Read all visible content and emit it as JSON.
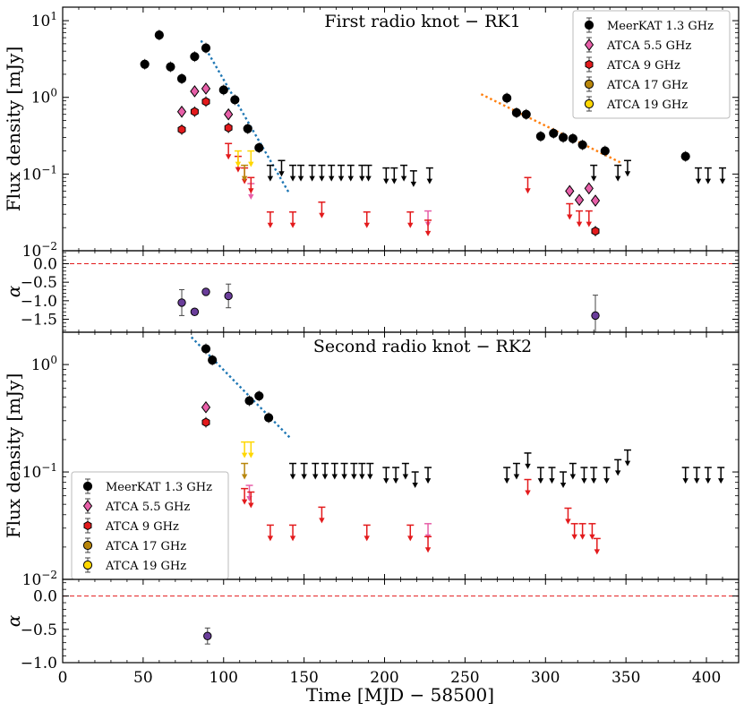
{
  "chart_data": {
    "type": "scatter",
    "x_axis": {
      "label": "Time [MJD − 58500]",
      "range": [
        0,
        420
      ],
      "ticks": [
        0,
        50,
        100,
        150,
        200,
        250,
        300,
        350,
        400
      ]
    },
    "panels": [
      {
        "id": "rk1-flux",
        "title": "First radio knot − RK1",
        "ylabel": "Flux density [mJy]",
        "yscale": "log",
        "ylim": [
          0.01,
          15
        ],
        "ytick_labels": [
          "10−2",
          "10−1",
          "100",
          "101"
        ],
        "legend_position": "top-right",
        "series": [
          {
            "name": "MeerKAT 1.3 GHz",
            "color": "#000000",
            "marker": "circle",
            "points": [
              [
                51,
                2.7
              ],
              [
                60,
                6.5
              ],
              [
                67,
                2.5
              ],
              [
                74,
                1.75
              ],
              [
                82,
                3.4
              ],
              [
                89,
                4.4
              ],
              [
                100,
                1.25
              ],
              [
                107,
                0.93
              ],
              [
                115,
                0.39
              ],
              [
                122,
                0.22
              ],
              [
                276,
                0.98
              ],
              [
                282,
                0.63
              ],
              [
                288,
                0.6
              ],
              [
                297,
                0.31
              ],
              [
                305,
                0.34
              ],
              [
                311,
                0.3
              ],
              [
                317,
                0.29
              ],
              [
                323,
                0.24
              ],
              [
                337,
                0.2
              ],
              [
                387,
                0.17
              ]
            ],
            "upper_limits": [
              [
                129,
                0.13
              ],
              [
                136,
                0.15
              ],
              [
                143,
                0.13
              ],
              [
                148,
                0.13
              ],
              [
                155,
                0.13
              ],
              [
                161,
                0.13
              ],
              [
                167,
                0.13
              ],
              [
                173,
                0.13
              ],
              [
                179,
                0.13
              ],
              [
                186,
                0.13
              ],
              [
                190,
                0.13
              ],
              [
                201,
                0.12
              ],
              [
                206,
                0.12
              ],
              [
                212,
                0.13
              ],
              [
                218,
                0.11
              ],
              [
                228,
                0.12
              ],
              [
                330,
                0.13
              ],
              [
                345,
                0.13
              ],
              [
                351,
                0.15
              ],
              [
                395,
                0.12
              ],
              [
                401,
                0.12
              ],
              [
                410,
                0.12
              ]
            ]
          },
          {
            "name": "ATCA 5.5 GHz",
            "color": "#e75fa8",
            "marker": "diamond",
            "points": [
              [
                74,
                0.65
              ],
              [
                82,
                1.2
              ],
              [
                89,
                1.3
              ],
              [
                103,
                0.6
              ],
              [
                315,
                0.06
              ],
              [
                321,
                0.046
              ],
              [
                327,
                0.065
              ],
              [
                331,
                0.045
              ]
            ],
            "upper_limits": [
              [
                117,
                0.075
              ],
              [
                227,
                0.033
              ]
            ]
          },
          {
            "name": "ATCA 9 GHz",
            "color": "#e31a1c",
            "marker": "hexagon",
            "points": [
              [
                74,
                0.38
              ],
              [
                82,
                0.65
              ],
              [
                89,
                0.88
              ],
              [
                103,
                0.4
              ],
              [
                331,
                0.018
              ]
            ],
            "upper_limits": [
              [
                103,
                0.25
              ],
              [
                109,
                0.17
              ],
              [
                113,
                0.12
              ],
              [
                117,
                0.09
              ],
              [
                129,
                0.032
              ],
              [
                143,
                0.032
              ],
              [
                161,
                0.043
              ],
              [
                189,
                0.032
              ],
              [
                216,
                0.032
              ],
              [
                227,
                0.025
              ],
              [
                289,
                0.09
              ],
              [
                315,
                0.041
              ],
              [
                321,
                0.033
              ],
              [
                327,
                0.033
              ]
            ]
          },
          {
            "name": "ATCA 17 GHz",
            "color": "#b8860b",
            "marker": "circle",
            "points": [],
            "upper_limits": [
              [
                113,
                0.13
              ]
            ]
          },
          {
            "name": "ATCA 19 GHz",
            "color": "#ffd700",
            "marker": "circle",
            "points": [],
            "upper_limits": [
              [
                109,
                0.2
              ],
              [
                117,
                0.2
              ]
            ]
          }
        ],
        "fit_lines": [
          {
            "color": "#1f77b4",
            "from": [
              86,
              5.5
            ],
            "to": [
              141,
              0.055
            ]
          },
          {
            "color": "#ff7f0e",
            "from": [
              260,
              1.1
            ],
            "to": [
              347,
              0.14
            ]
          }
        ]
      },
      {
        "id": "rk1-alpha",
        "ylabel": "α",
        "yscale": "linear",
        "ylim": [
          -1.85,
          0.35
        ],
        "yticks": [
          0.0,
          -0.5,
          -1.0,
          -1.5
        ],
        "ytick_labels": [
          "0.0",
          "−0.5",
          "−1.0",
          "−1.5"
        ],
        "reference_line": 0,
        "points": [
          [
            74,
            -1.05,
            0.35
          ],
          [
            82,
            -1.3,
            0
          ],
          [
            89,
            -0.76,
            0
          ],
          [
            103,
            -0.87,
            0.32
          ],
          [
            331,
            -1.4,
            0.55
          ]
        ],
        "color": "#6a3d9a"
      },
      {
        "id": "rk2-flux",
        "title": "Second radio knot − RK2",
        "ylabel": "Flux density [mJy]",
        "yscale": "log",
        "ylim": [
          0.01,
          2
        ],
        "ytick_labels": [
          "10−2",
          "10−1",
          "100"
        ],
        "legend_position": "bottom-left",
        "series": [
          {
            "name": "MeerKAT 1.3 GHz",
            "color": "#000000",
            "marker": "circle",
            "points": [
              [
                89,
                1.4
              ],
              [
                93,
                1.1
              ],
              [
                116,
                0.46
              ],
              [
                122,
                0.51
              ],
              [
                128,
                0.32
              ]
            ],
            "upper_limits": [
              [
                143,
                0.12
              ],
              [
                150,
                0.12
              ],
              [
                157,
                0.12
              ],
              [
                163,
                0.12
              ],
              [
                169,
                0.12
              ],
              [
                175,
                0.12
              ],
              [
                181,
                0.12
              ],
              [
                186,
                0.12
              ],
              [
                191,
                0.12
              ],
              [
                201,
                0.11
              ],
              [
                207,
                0.11
              ],
              [
                213,
                0.12
              ],
              [
                219,
                0.1
              ],
              [
                227,
                0.11
              ],
              [
                276,
                0.11
              ],
              [
                282,
                0.12
              ],
              [
                289,
                0.15
              ],
              [
                297,
                0.11
              ],
              [
                304,
                0.11
              ],
              [
                311,
                0.1
              ],
              [
                317,
                0.12
              ],
              [
                324,
                0.11
              ],
              [
                330,
                0.11
              ],
              [
                338,
                0.11
              ],
              [
                345,
                0.13
              ],
              [
                351,
                0.16
              ],
              [
                387,
                0.11
              ],
              [
                394,
                0.11
              ],
              [
                401,
                0.11
              ],
              [
                409,
                0.11
              ]
            ]
          },
          {
            "name": "ATCA 5.5 GHz",
            "color": "#e75fa8",
            "marker": "diamond",
            "points": [
              [
                89,
                0.4
              ]
            ],
            "upper_limits": [
              [
                116,
                0.075
              ],
              [
                227,
                0.033
              ]
            ]
          },
          {
            "name": "ATCA 9 GHz",
            "color": "#e31a1c",
            "marker": "hexagon",
            "points": [
              [
                89,
                0.29
              ]
            ],
            "upper_limits": [
              [
                113,
                0.07
              ],
              [
                117,
                0.065
              ],
              [
                129,
                0.032
              ],
              [
                143,
                0.032
              ],
              [
                161,
                0.047
              ],
              [
                189,
                0.032
              ],
              [
                216,
                0.032
              ],
              [
                227,
                0.025
              ],
              [
                289,
                0.085
              ],
              [
                314,
                0.046
              ],
              [
                318,
                0.033
              ],
              [
                323,
                0.033
              ],
              [
                329,
                0.033
              ],
              [
                332,
                0.024
              ]
            ]
          },
          {
            "name": "ATCA 17 GHz",
            "color": "#b8860b",
            "marker": "circle",
            "points": [],
            "upper_limits": [
              [
                113,
                0.12
              ]
            ]
          },
          {
            "name": "ATCA 19 GHz",
            "color": "#ffd700",
            "marker": "circle",
            "points": [],
            "upper_limits": [
              [
                113,
                0.19
              ],
              [
                117,
                0.19
              ]
            ]
          }
        ],
        "fit_lines": [
          {
            "color": "#1f77b4",
            "from": [
              80,
              1.8
            ],
            "to": [
              141,
              0.21
            ]
          }
        ]
      },
      {
        "id": "rk2-alpha",
        "ylabel": "α",
        "yscale": "linear",
        "ylim": [
          -1.0,
          0.25
        ],
        "yticks": [
          0.0,
          -0.5,
          -1.0
        ],
        "ytick_labels": [
          "0.0",
          "−0.5",
          "−1.0"
        ],
        "reference_line": 0,
        "points": [
          [
            90,
            -0.6,
            0.12
          ]
        ],
        "color": "#6a3d9a"
      }
    ]
  }
}
